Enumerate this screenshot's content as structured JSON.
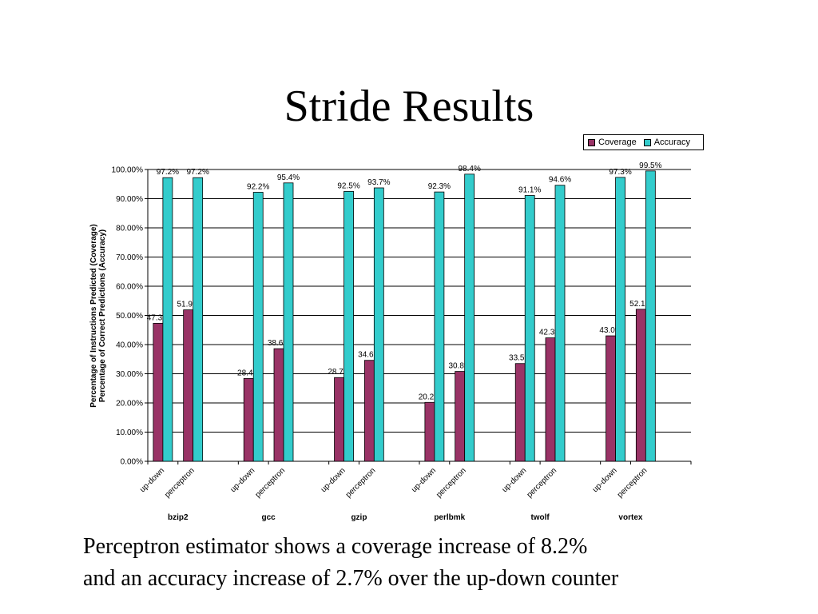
{
  "slide": {
    "title": "Stride Results",
    "caption_line1": "Perceptron estimator shows a coverage increase of 8.2%",
    "caption_line2": "and an accuracy increase of 2.7% over the up-down counter"
  },
  "colors": {
    "coverage": "#993366",
    "accuracy": "#33CCCC"
  },
  "chart_data": {
    "type": "bar",
    "ylabel_line1": "Percentage of Instructions Predicted (Coverage)",
    "ylabel_line2": "Percentage of Correct Predictions (Accuracy)",
    "ylim": [
      0,
      100
    ],
    "yticks": [
      "0.00%",
      "10.00%",
      "20.00%",
      "30.00%",
      "40.00%",
      "50.00%",
      "60.00%",
      "70.00%",
      "80.00%",
      "90.00%",
      "100.00%"
    ],
    "grid": "horizontal",
    "legend_position": "top-right",
    "groups": [
      "bzip2",
      "gcc",
      "gzip",
      "perlbmk",
      "twolf",
      "vortex"
    ],
    "subcategories": [
      "up-down",
      "perceptron"
    ],
    "categories": [
      "bzip2 up-down",
      "bzip2 perceptron",
      "gcc up-down",
      "gcc perceptron",
      "gzip up-down",
      "gzip perceptron",
      "perlbmk up-down",
      "perlbmk perceptron",
      "twolf up-down",
      "twolf perceptron",
      "vortex up-down",
      "vortex perceptron"
    ],
    "series": [
      {
        "name": "Coverage",
        "values": [
          47.3,
          51.9,
          28.4,
          38.6,
          28.7,
          34.6,
          20.2,
          30.8,
          33.5,
          42.3,
          43.0,
          52.1
        ],
        "labels": [
          "47.3%",
          "51.9%",
          "28.4%",
          "38.6%",
          "28.7%",
          "34.6%",
          "20.2%",
          "30.8%",
          "33.5%",
          "42.3%",
          "43.0%",
          "52.1%"
        ]
      },
      {
        "name": "Accuracy",
        "values": [
          97.2,
          97.2,
          92.2,
          95.4,
          92.5,
          93.7,
          92.3,
          98.4,
          91.1,
          94.6,
          97.3,
          99.5
        ],
        "labels": [
          "97.2%",
          "97.2%",
          "92.2%",
          "95.4%",
          "92.5%",
          "93.7%",
          "92.3%",
          "98.4%",
          "91.1%",
          "94.6%",
          "97.3%",
          "99.5%"
        ]
      }
    ]
  }
}
